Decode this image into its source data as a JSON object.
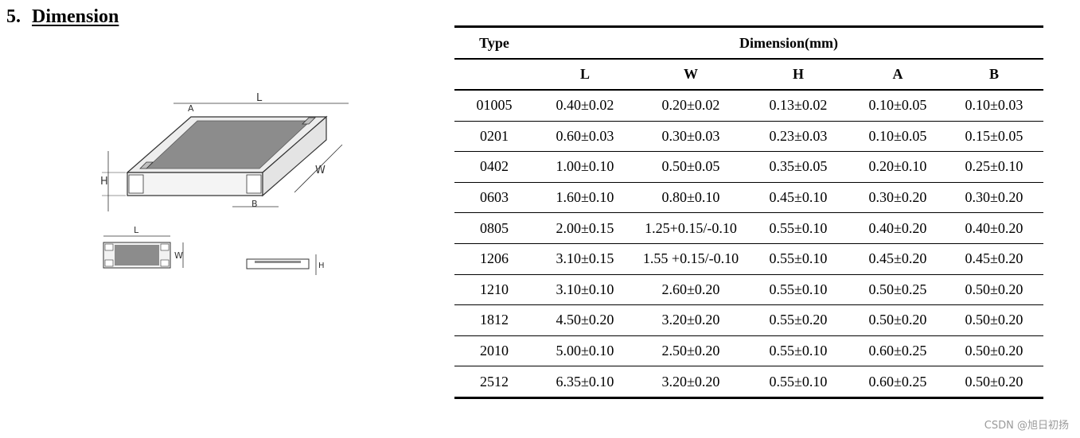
{
  "heading": {
    "number": "5.",
    "title": "Dimension"
  },
  "diagram": {
    "labels": {
      "L": "L",
      "A": "A",
      "W": "W",
      "H": "H",
      "B": "B"
    },
    "colors": {
      "body": "#ededed",
      "resistive": "#8c8c8c",
      "outline": "#333333",
      "terminal": "#bfbfbf"
    }
  },
  "table": {
    "type_header": "Type",
    "group_header": "Dimension(mm)",
    "columns": [
      "L",
      "W",
      "H",
      "A",
      "B"
    ],
    "rows": [
      [
        "01005",
        "0.40±0.02",
        "0.20±0.02",
        "0.13±0.02",
        "0.10±0.05",
        "0.10±0.03"
      ],
      [
        "0201",
        "0.60±0.03",
        "0.30±0.03",
        "0.23±0.03",
        "0.10±0.05",
        "0.15±0.05"
      ],
      [
        "0402",
        "1.00±0.10",
        "0.50±0.05",
        "0.35±0.05",
        "0.20±0.10",
        "0.25±0.10"
      ],
      [
        "0603",
        "1.60±0.10",
        "0.80±0.10",
        "0.45±0.10",
        "0.30±0.20",
        "0.30±0.20"
      ],
      [
        "0805",
        "2.00±0.15",
        "1.25+0.15/-0.10",
        "0.55±0.10",
        "0.40±0.20",
        "0.40±0.20"
      ],
      [
        "1206",
        "3.10±0.15",
        "1.55 +0.15/-0.10",
        "0.55±0.10",
        "0.45±0.20",
        "0.45±0.20"
      ],
      [
        "1210",
        "3.10±0.10",
        "2.60±0.20",
        "0.55±0.10",
        "0.50±0.25",
        "0.50±0.20"
      ],
      [
        "1812",
        "4.50±0.20",
        "3.20±0.20",
        "0.55±0.20",
        "0.50±0.20",
        "0.50±0.20"
      ],
      [
        "2010",
        "5.00±0.10",
        "2.50±0.20",
        "0.55±0.10",
        "0.60±0.25",
        "0.50±0.20"
      ],
      [
        "2512",
        "6.35±0.10",
        "3.20±0.20",
        "0.55±0.10",
        "0.60±0.25",
        "0.50±0.20"
      ]
    ]
  },
  "watermark": "CSDN @旭日初扬"
}
